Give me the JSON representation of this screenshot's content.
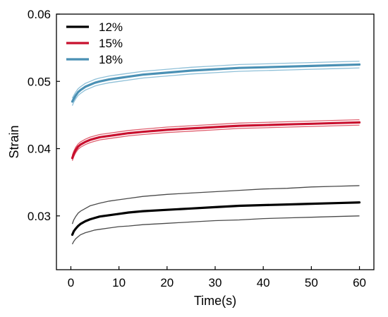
{
  "chart_data": {
    "type": "line",
    "title": "",
    "xlabel": "Time(s)",
    "ylabel": "Strain",
    "xlim": [
      -3,
      63
    ],
    "ylim": [
      0.022,
      0.06
    ],
    "xticks": [
      0,
      10,
      20,
      30,
      40,
      50,
      60
    ],
    "yticks": [
      0.03,
      0.04,
      0.05,
      0.06
    ],
    "xtick_labels": [
      "0",
      "10",
      "20",
      "30",
      "40",
      "50",
      "60"
    ],
    "ytick_labels": [
      "0.03",
      "0.04",
      "0.05",
      "0.06"
    ],
    "grid": false,
    "legend_position": "top-left",
    "x": [
      0.3,
      0.6,
      1,
      1.5,
      2,
      3,
      4,
      5,
      6,
      8,
      10,
      12,
      15,
      20,
      25,
      30,
      35,
      40,
      45,
      50,
      55,
      60
    ],
    "series": [
      {
        "name": "12%",
        "color": "#000000",
        "band_color": "#4a4a4a",
        "values": [
          0.0272,
          0.0277,
          0.0281,
          0.0285,
          0.0288,
          0.0292,
          0.0295,
          0.0297,
          0.0299,
          0.0301,
          0.0303,
          0.0305,
          0.0307,
          0.0309,
          0.0311,
          0.0313,
          0.0315,
          0.0316,
          0.0317,
          0.0318,
          0.0319,
          0.032
        ],
        "upper": [
          0.0288,
          0.0294,
          0.0299,
          0.0304,
          0.0307,
          0.0311,
          0.0315,
          0.0317,
          0.0319,
          0.0322,
          0.0324,
          0.0326,
          0.0329,
          0.0332,
          0.0334,
          0.0336,
          0.0338,
          0.034,
          0.0341,
          0.0343,
          0.0344,
          0.0345
        ],
        "lower": [
          0.0258,
          0.0262,
          0.0266,
          0.0269,
          0.0272,
          0.0275,
          0.0277,
          0.0279,
          0.028,
          0.0282,
          0.0284,
          0.0285,
          0.0287,
          0.0289,
          0.0291,
          0.0293,
          0.0294,
          0.0296,
          0.0297,
          0.0298,
          0.0299,
          0.03
        ]
      },
      {
        "name": "15%",
        "color": "#c8102e",
        "band_color": "#e06070",
        "values": [
          0.0386,
          0.0392,
          0.0398,
          0.0403,
          0.0406,
          0.041,
          0.0413,
          0.0415,
          0.0417,
          0.0419,
          0.0421,
          0.0423,
          0.0425,
          0.0428,
          0.043,
          0.0432,
          0.0434,
          0.0435,
          0.0436,
          0.0437,
          0.0438,
          0.0439
        ],
        "upper": [
          0.039,
          0.0396,
          0.0402,
          0.0407,
          0.041,
          0.0414,
          0.0417,
          0.0419,
          0.0421,
          0.0423,
          0.0425,
          0.0427,
          0.0429,
          0.0432,
          0.0434,
          0.0436,
          0.0438,
          0.0439,
          0.044,
          0.0441,
          0.0442,
          0.0443
        ],
        "lower": [
          0.0382,
          0.0388,
          0.0394,
          0.0399,
          0.0402,
          0.0406,
          0.0409,
          0.0411,
          0.0413,
          0.0415,
          0.0417,
          0.0419,
          0.0421,
          0.0424,
          0.0426,
          0.0428,
          0.043,
          0.0431,
          0.0432,
          0.0433,
          0.0434,
          0.0435
        ]
      },
      {
        "name": "18%",
        "color": "#4a90b4",
        "band_color": "#8fc0d8",
        "values": [
          0.047,
          0.0474,
          0.0479,
          0.0484,
          0.0487,
          0.0492,
          0.0495,
          0.0498,
          0.05,
          0.0503,
          0.0505,
          0.0507,
          0.051,
          0.0513,
          0.0516,
          0.0518,
          0.052,
          0.0521,
          0.0522,
          0.0523,
          0.0524,
          0.0525
        ],
        "upper": [
          0.0475,
          0.0479,
          0.0484,
          0.0489,
          0.0492,
          0.0497,
          0.05,
          0.0503,
          0.0505,
          0.0508,
          0.051,
          0.0512,
          0.0515,
          0.0518,
          0.0521,
          0.0523,
          0.0525,
          0.0526,
          0.0527,
          0.0528,
          0.0529,
          0.053
        ],
        "lower": [
          0.0464,
          0.0469,
          0.0474,
          0.0479,
          0.0482,
          0.0487,
          0.049,
          0.0493,
          0.0495,
          0.0498,
          0.05,
          0.0502,
          0.0505,
          0.0508,
          0.0511,
          0.0513,
          0.0515,
          0.0516,
          0.0517,
          0.0518,
          0.0519,
          0.052
        ]
      }
    ]
  }
}
